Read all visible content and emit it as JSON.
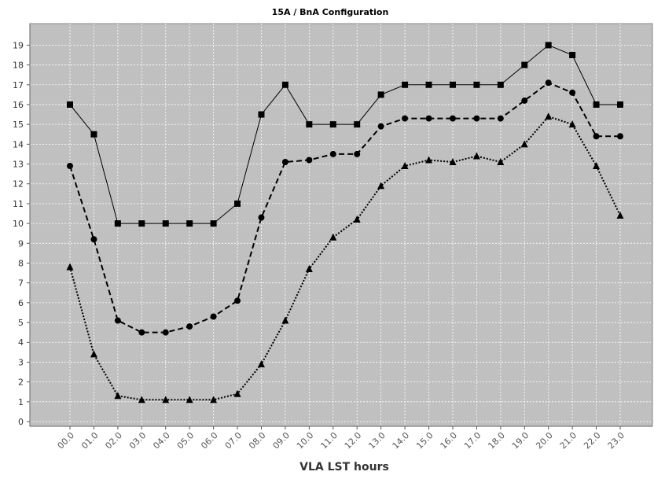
{
  "chart_data": {
    "type": "line",
    "title": "15A / BnA Configuration",
    "xlabel": "VLA LST hours",
    "ylabel": "",
    "categories": [
      "00.0",
      "01.0",
      "02.0",
      "03.0",
      "04.0",
      "05.0",
      "06.0",
      "07.0",
      "08.0",
      "09.0",
      "10.0",
      "11.0",
      "12.0",
      "13.0",
      "14.0",
      "15.0",
      "16.0",
      "17.0",
      "18.0",
      "19.0",
      "20.0",
      "21.0",
      "22.0",
      "23.0"
    ],
    "ylim": [
      0,
      19.5
    ],
    "yticks": [
      0,
      1,
      2,
      3,
      4,
      5,
      6,
      7,
      8,
      9,
      10,
      11,
      12,
      13,
      14,
      15,
      16,
      17,
      18,
      19
    ],
    "grid": true,
    "legend": "none",
    "plot_background": "#c0c0c0",
    "line_color": "#000000",
    "series": [
      {
        "marker": "square",
        "line_style": "solid",
        "values": [
          16,
          14.5,
          10,
          10,
          10,
          10,
          10,
          11,
          15.5,
          17,
          15,
          15,
          15,
          16.5,
          17,
          17,
          17,
          17,
          17,
          18,
          19,
          18.5,
          16,
          16
        ]
      },
      {
        "marker": "circle",
        "line_style": "dashed",
        "values": [
          12.9,
          9.2,
          5.1,
          4.5,
          4.5,
          4.8,
          5.3,
          6.1,
          10.3,
          13.1,
          13.2,
          13.5,
          13.5,
          14.9,
          15.3,
          15.3,
          15.3,
          15.3,
          15.3,
          16.2,
          17.1,
          16.6,
          14.4,
          14.4
        ]
      },
      {
        "marker": "triangle",
        "line_style": "dotted",
        "values": [
          7.8,
          3.4,
          1.3,
          1.1,
          1.1,
          1.1,
          1.1,
          1.4,
          2.9,
          5.1,
          7.7,
          9.3,
          10.2,
          11.9,
          12.9,
          13.2,
          13.1,
          13.4,
          13.1,
          14,
          15.4,
          15,
          12.9,
          10.4
        ]
      }
    ]
  }
}
